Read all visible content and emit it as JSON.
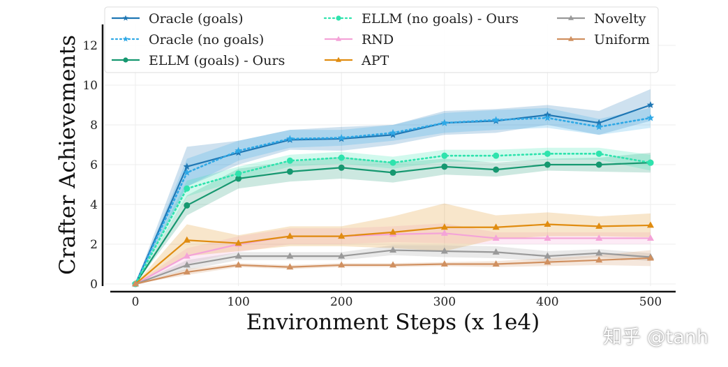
{
  "chart_data": {
    "type": "line",
    "title": "",
    "xlabel": "Environment Steps (x 1e4)",
    "ylabel": "Crafter Achievements",
    "xlim": [
      -20,
      520
    ],
    "ylim": [
      0,
      13
    ],
    "xticks": [
      0,
      100,
      200,
      300,
      400,
      500
    ],
    "yticks": [
      0,
      2,
      4,
      6,
      8,
      10,
      12
    ],
    "grid": true,
    "legend_position": "top",
    "x": [
      0,
      50,
      100,
      150,
      200,
      250,
      300,
      350,
      400,
      450,
      500
    ],
    "series": [
      {
        "name": "Oracle (goals)",
        "color": "#1f77b4",
        "style": "solid",
        "marker": "star",
        "values": [
          0,
          5.9,
          6.6,
          7.25,
          7.3,
          7.5,
          8.1,
          8.2,
          8.5,
          8.1,
          9.0
        ],
        "std": [
          0,
          1.0,
          0.6,
          0.5,
          0.6,
          0.5,
          0.6,
          0.6,
          0.5,
          0.6,
          0.8
        ]
      },
      {
        "name": "Oracle (no goals)",
        "color": "#2ea8e6",
        "style": "dotted",
        "marker": "star",
        "values": [
          0,
          5.6,
          6.7,
          7.3,
          7.35,
          7.6,
          8.1,
          8.25,
          8.35,
          7.9,
          8.35
        ],
        "std": [
          0,
          0.7,
          0.5,
          0.45,
          0.4,
          0.4,
          0.5,
          0.5,
          0.5,
          0.4,
          0.5
        ]
      },
      {
        "name": "ELLM (goals) - Ours",
        "color": "#169870",
        "style": "solid",
        "marker": "circle",
        "values": [
          0,
          3.95,
          5.3,
          5.65,
          5.85,
          5.6,
          5.9,
          5.75,
          6.0,
          6.0,
          6.1
        ],
        "std": [
          0,
          0.5,
          0.5,
          0.5,
          0.55,
          0.5,
          0.4,
          0.35,
          0.3,
          0.35,
          0.5
        ]
      },
      {
        "name": "ELLM (no goals) - Ours",
        "color": "#2ee3ad",
        "style": "dotted",
        "marker": "circle",
        "values": [
          0,
          4.8,
          5.55,
          6.2,
          6.35,
          6.1,
          6.45,
          6.45,
          6.55,
          6.55,
          6.1
        ],
        "std": [
          0,
          0.4,
          0.35,
          0.3,
          0.3,
          0.3,
          0.3,
          0.3,
          0.3,
          0.3,
          0.4
        ]
      },
      {
        "name": "RND",
        "color": "#f4a3d8",
        "style": "solid",
        "marker": "triangle",
        "values": [
          0,
          1.4,
          2.0,
          2.4,
          2.4,
          2.5,
          2.55,
          2.3,
          2.3,
          2.3,
          2.3
        ],
        "std": [
          0,
          0.4,
          0.4,
          0.4,
          0.4,
          0.4,
          0.5,
          0.3,
          0.3,
          0.3,
          0.3
        ]
      },
      {
        "name": "APT",
        "color": "#e08c10",
        "style": "solid",
        "marker": "triangle",
        "values": [
          0,
          2.2,
          2.05,
          2.4,
          2.4,
          2.6,
          2.85,
          2.85,
          3.0,
          2.9,
          2.95
        ],
        "std": [
          0,
          0.8,
          0.4,
          0.5,
          0.5,
          0.8,
          1.2,
          0.6,
          0.6,
          0.5,
          0.6
        ]
      },
      {
        "name": "Novelty",
        "color": "#999999",
        "style": "solid",
        "marker": "triangle",
        "values": [
          0,
          0.95,
          1.4,
          1.4,
          1.4,
          1.7,
          1.65,
          1.6,
          1.4,
          1.55,
          1.35
        ],
        "std": [
          0,
          0.25,
          0.2,
          0.2,
          0.2,
          0.25,
          0.3,
          0.3,
          0.25,
          0.2,
          0.2
        ]
      },
      {
        "name": "Uniform",
        "color": "#d09060",
        "style": "solid",
        "marker": "triangle",
        "values": [
          0,
          0.6,
          0.95,
          0.85,
          0.95,
          0.95,
          1.0,
          1.0,
          1.1,
          1.2,
          1.3
        ],
        "std": [
          0,
          0.15,
          0.1,
          0.1,
          0.1,
          0.1,
          0.1,
          0.15,
          0.2,
          0.25,
          0.4
        ]
      }
    ]
  },
  "watermark": "知乎 @tanh"
}
